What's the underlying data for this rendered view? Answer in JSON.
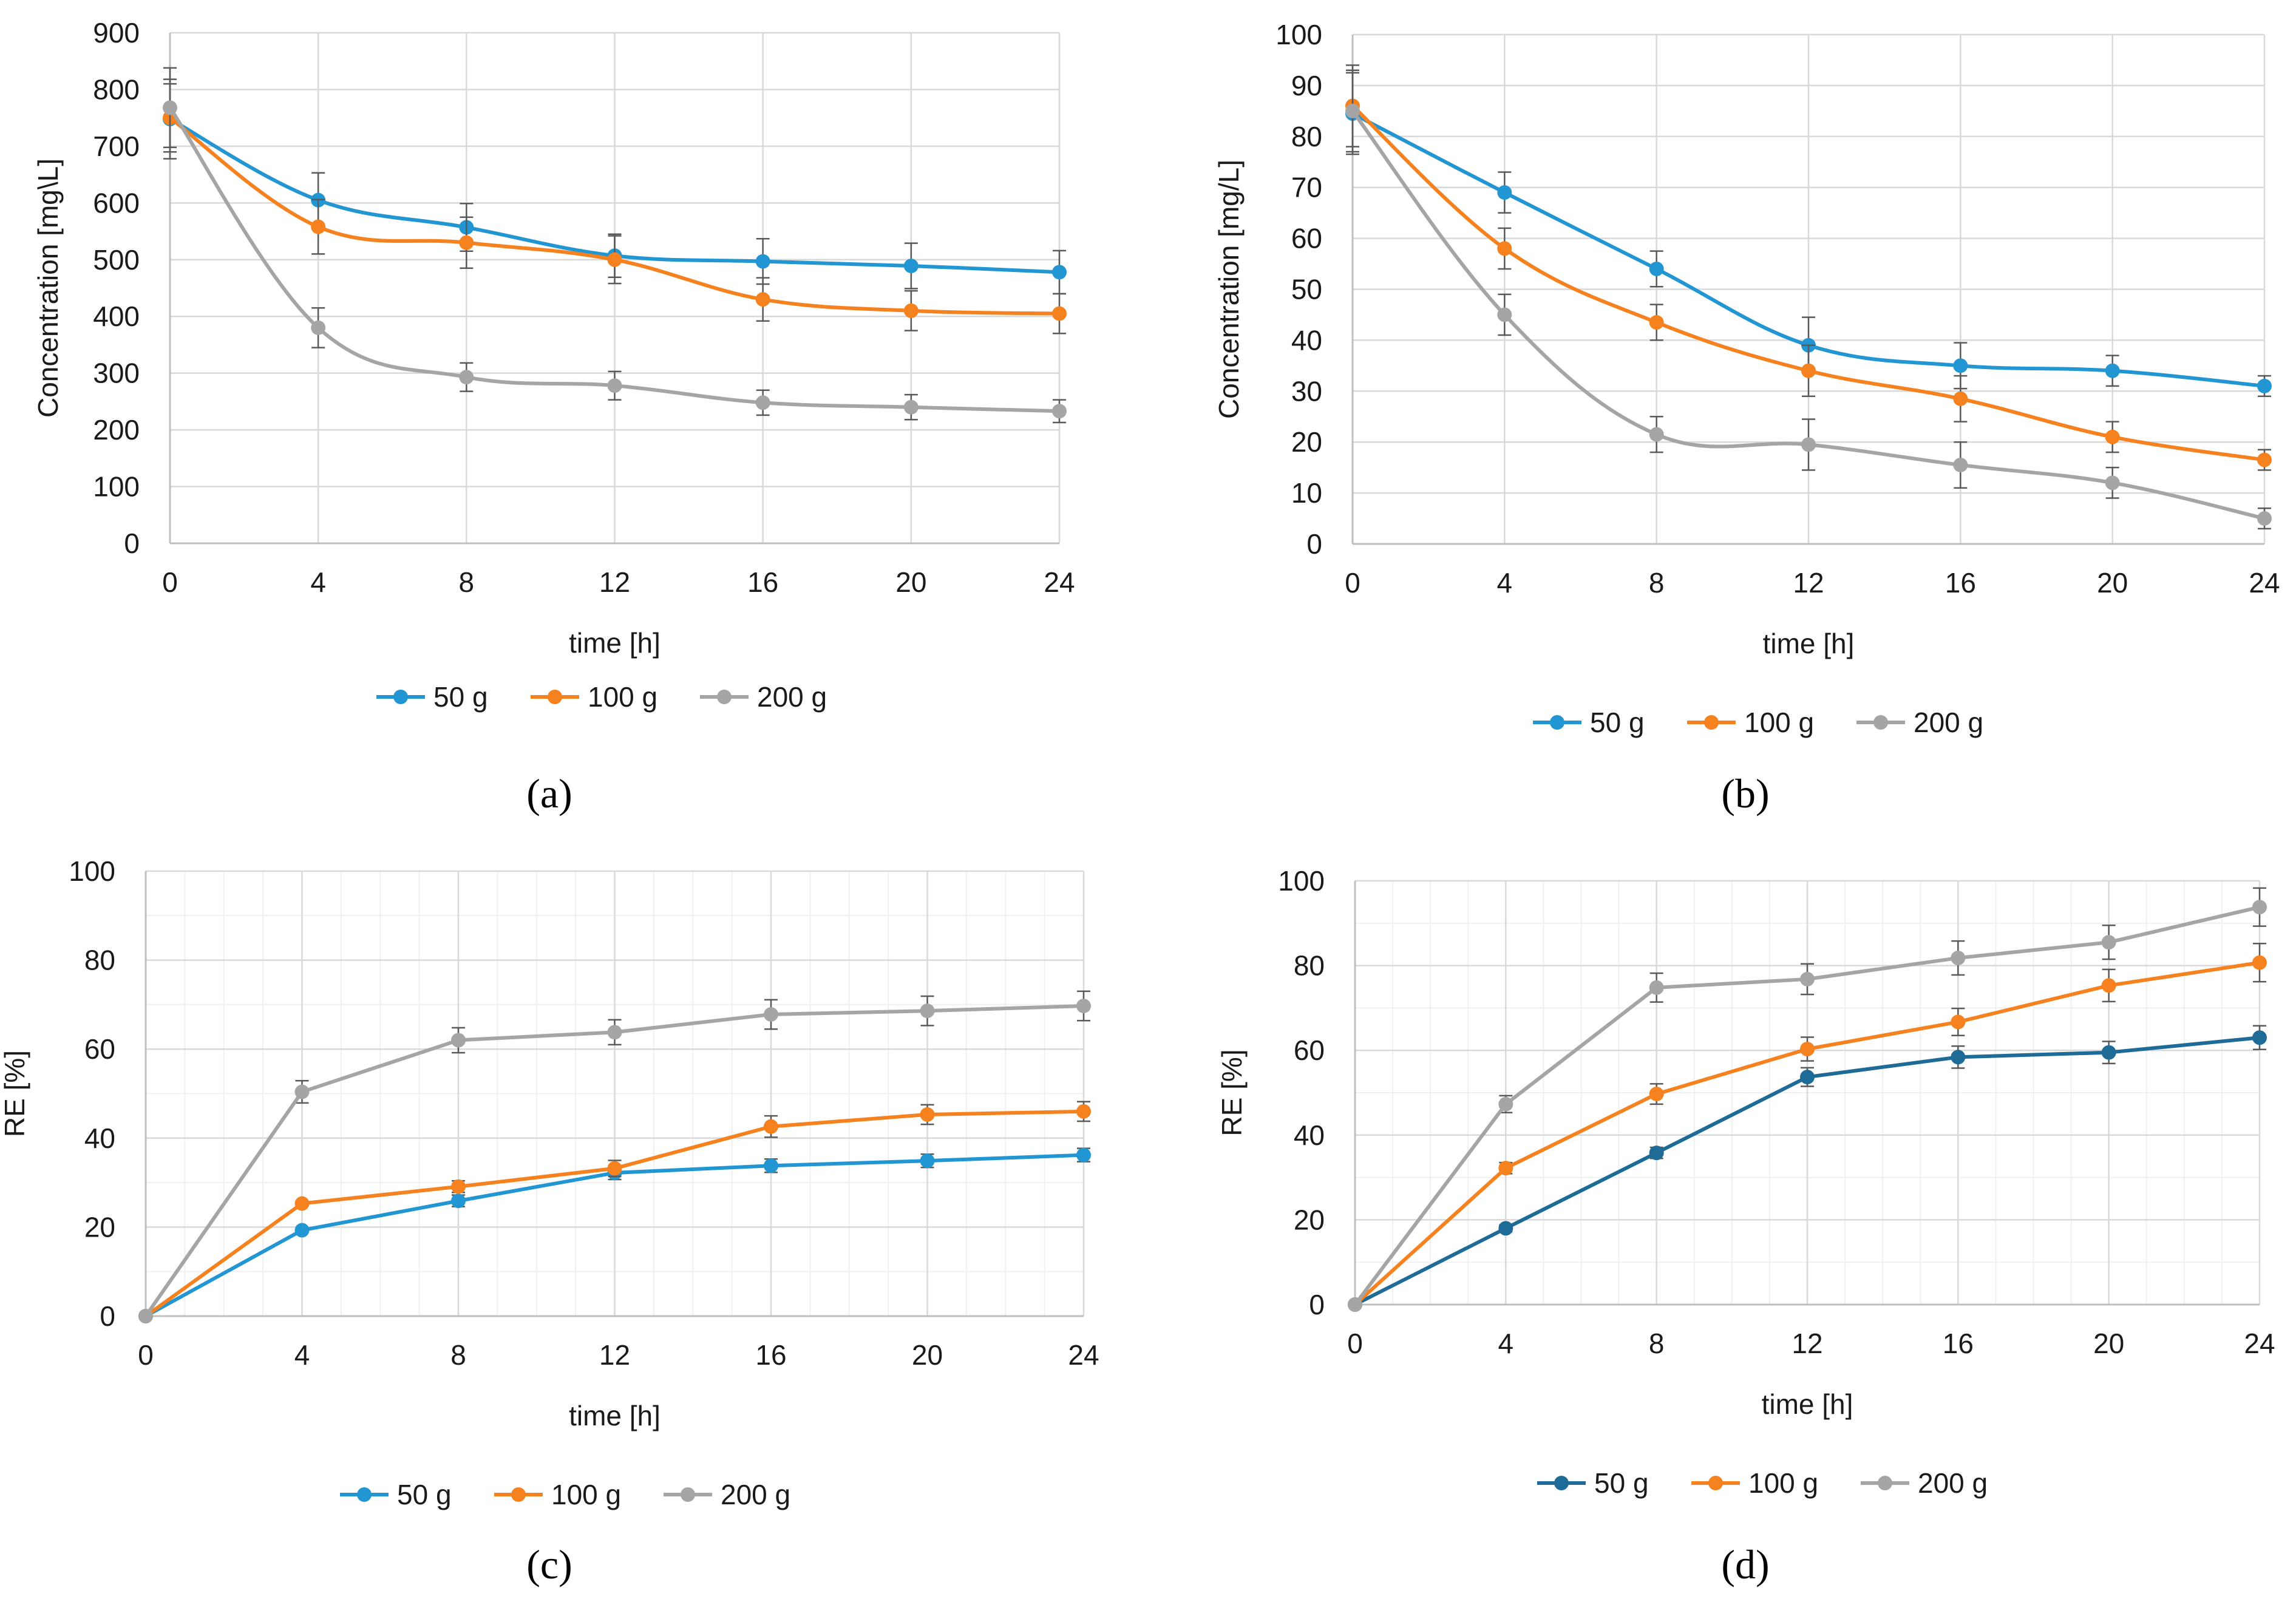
{
  "chart_data": [
    {
      "type": "line",
      "panel_label": "(a)",
      "xlabel": "time [h]",
      "ylabel": "Concentration [mg\\L]",
      "x": [
        0,
        4,
        8,
        12,
        16,
        20,
        24
      ],
      "xticks": [
        "0",
        "4",
        "8",
        "12",
        "16",
        "20",
        "24"
      ],
      "yticks": [
        "0",
        "100",
        "200",
        "300",
        "400",
        "500",
        "600",
        "700",
        "800",
        "900"
      ],
      "xlim": [
        0,
        24
      ],
      "ylim": [
        0,
        900
      ],
      "grid": true,
      "smooth": true,
      "legend_position": "bottom",
      "series": [
        {
          "name": "50 g",
          "color": "#2196d3",
          "values": [
            748,
            605,
            557,
            507,
            497,
            489,
            478
          ],
          "errors": [
            70,
            48,
            42,
            38,
            40,
            40,
            38
          ]
        },
        {
          "name": "100 g",
          "color": "#f5821f",
          "values": [
            750,
            558,
            530,
            500,
            430,
            410,
            405
          ],
          "errors": [
            60,
            48,
            45,
            42,
            38,
            35,
            35
          ]
        },
        {
          "name": "200 g",
          "color": "#a5a5a5",
          "values": [
            768,
            380,
            293,
            278,
            248,
            240,
            233
          ],
          "errors": [
            70,
            35,
            25,
            25,
            22,
            22,
            20
          ]
        }
      ]
    },
    {
      "type": "line",
      "panel_label": "(b)",
      "xlabel": "time [h]",
      "ylabel": "Concentration [mg/L]",
      "x": [
        0,
        4,
        8,
        12,
        16,
        20,
        24
      ],
      "xticks": [
        "0",
        "4",
        "8",
        "12",
        "16",
        "20",
        "24"
      ],
      "yticks": [
        "0",
        "10",
        "20",
        "30",
        "40",
        "50",
        "60",
        "70",
        "80",
        "90",
        "100"
      ],
      "xlim": [
        0,
        24
      ],
      "ylim": [
        0,
        100
      ],
      "grid": true,
      "smooth": true,
      "legend_position": "bottom",
      "series": [
        {
          "name": "50 g",
          "color": "#2196d3",
          "values": [
            84.5,
            69,
            54,
            39,
            35,
            34,
            31
          ],
          "errors": [
            8,
            4,
            3.5,
            5.5,
            4.5,
            3,
            2
          ]
        },
        {
          "name": "100 g",
          "color": "#f5821f",
          "values": [
            86,
            58,
            43.5,
            34,
            28.5,
            21,
            16.5
          ],
          "errors": [
            8,
            4,
            3.5,
            5,
            4.5,
            3,
            2
          ]
        },
        {
          "name": "200 g",
          "color": "#a5a5a5",
          "values": [
            85,
            45,
            21.5,
            19.5,
            15.5,
            12,
            5
          ],
          "errors": [
            8,
            4,
            3.5,
            5,
            4.5,
            3,
            2
          ]
        }
      ]
    },
    {
      "type": "line",
      "panel_label": "(c)",
      "xlabel": "time [h]",
      "ylabel": "RE [%]",
      "x": [
        0,
        4,
        8,
        12,
        16,
        20,
        24
      ],
      "xticks": [
        "0",
        "4",
        "8",
        "12",
        "16",
        "20",
        "24"
      ],
      "yticks": [
        "0",
        "20",
        "40",
        "60",
        "80",
        "100"
      ],
      "xlim": [
        0,
        24
      ],
      "ylim": [
        0,
        100
      ],
      "grid": true,
      "smooth": false,
      "legend_position": "bottom",
      "series": [
        {
          "name": "50 g",
          "color": "#2196d3",
          "values": [
            0,
            19.3,
            25.9,
            32.2,
            33.8,
            34.9,
            36.2
          ],
          "errors": [
            0,
            0.5,
            1.3,
            1.5,
            1.5,
            1.5,
            1.5
          ]
        },
        {
          "name": "100 g",
          "color": "#f5821f",
          "values": [
            0,
            25.3,
            29.1,
            33.2,
            42.6,
            45.3,
            46.0
          ],
          "errors": [
            0,
            0.5,
            1.3,
            1.8,
            2.4,
            2.2,
            2.2
          ]
        },
        {
          "name": "200 g",
          "color": "#a5a5a5",
          "values": [
            0,
            50.4,
            62.0,
            63.8,
            67.8,
            68.6,
            69.7
          ],
          "errors": [
            0,
            2.5,
            2.8,
            2.8,
            3.3,
            3.3,
            3.3
          ]
        }
      ]
    },
    {
      "type": "line",
      "panel_label": "(d)",
      "xlabel": "time [h]",
      "ylabel": "RE [%]",
      "x": [
        0,
        4,
        8,
        12,
        16,
        20,
        24
      ],
      "xticks": [
        "0",
        "4",
        "8",
        "12",
        "16",
        "20",
        "24"
      ],
      "yticks": [
        "0",
        "20",
        "40",
        "60",
        "80",
        "100"
      ],
      "xlim": [
        0,
        24
      ],
      "ylim": [
        0,
        100
      ],
      "grid": true,
      "smooth": false,
      "legend_position": "bottom",
      "series": [
        {
          "name": "50 g",
          "color": "#1f6b97",
          "values": [
            0,
            18,
            35.8,
            53.7,
            58.4,
            59.5,
            63.0
          ],
          "errors": [
            0,
            0.8,
            1.3,
            2.2,
            2.6,
            2.6,
            2.8
          ]
        },
        {
          "name": "100 g",
          "color": "#f5821f",
          "values": [
            0,
            32.2,
            49.7,
            60.3,
            66.7,
            75.3,
            80.7
          ],
          "errors": [
            0,
            1.3,
            2.4,
            2.8,
            3.2,
            3.8,
            4.5
          ]
        },
        {
          "name": "200 g",
          "color": "#a5a5a5",
          "values": [
            0,
            47.3,
            74.8,
            76.8,
            81.8,
            85.5,
            93.8
          ],
          "errors": [
            0,
            2.0,
            3.4,
            3.6,
            4.0,
            4.0,
            4.5
          ]
        }
      ]
    }
  ]
}
